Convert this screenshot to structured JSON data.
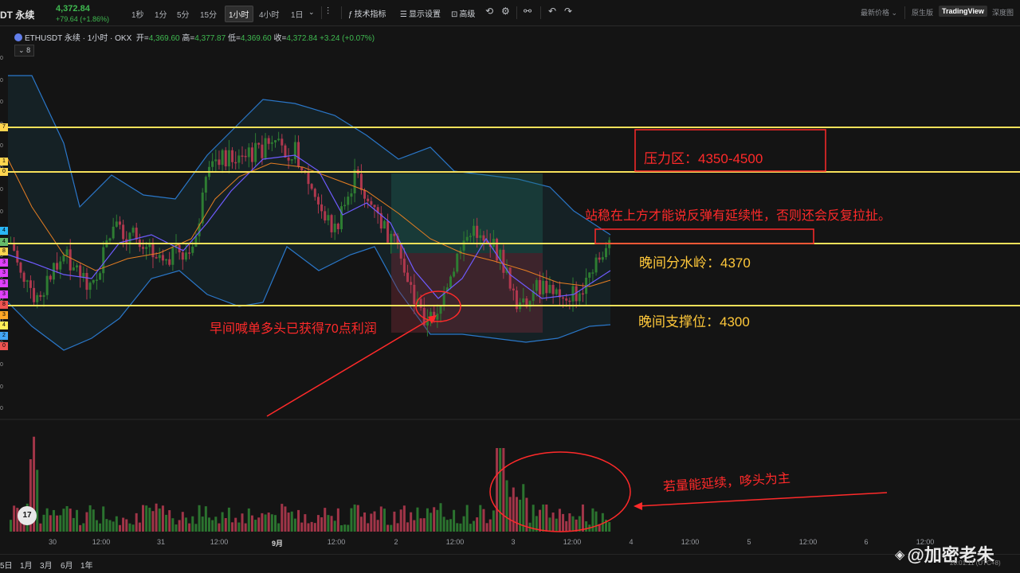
{
  "toolbar": {
    "symbol": "DT 永续",
    "last_price": "4,372.84",
    "change": "+79.64 (+1.86%)",
    "timeframes": [
      "1秒",
      "1分",
      "5分",
      "15分",
      "1小时",
      "4小时",
      "1日"
    ],
    "active_timeframe": "1小时",
    "indicators_label": "技术指标",
    "display_settings_label": "显示设置",
    "advanced_label": "高级",
    "price_type_label": "最新价格",
    "view_tabs": [
      "原生版",
      "TradingView",
      "深度图"
    ],
    "active_view": "TradingView"
  },
  "chart_header": {
    "title": "ETHUSDT 永续 · 1小时 · OKX",
    "open_label": "开=",
    "open": "4,369.60",
    "high_label": "高=",
    "high": "4,377.87",
    "low_label": "低=",
    "low": "4,369.60",
    "close_label": "收=",
    "close": "4,372.84",
    "change": "+3.24 (+0.07%)",
    "indicator_count": "8"
  },
  "left_axis_labels": [
    "0",
    "0",
    "0",
    "0",
    "0",
    "0",
    "0",
    "0",
    "0",
    "0",
    "0",
    "0",
    "0",
    "0",
    "0",
    "0",
    "0"
  ],
  "left_badges": [
    {
      "text": "7",
      "color": "#ffd54f"
    },
    {
      "text": "1",
      "color": "#ffd54f"
    },
    {
      "text": "0",
      "color": "#ffd54f"
    },
    {
      "text": "4",
      "color": "#29b6f6"
    },
    {
      "text": "4",
      "color": "#66bb6a"
    },
    {
      "text": "8",
      "color": "#ffd54f"
    },
    {
      "text": "3",
      "color": "#e040fb"
    },
    {
      "text": "3",
      "color": "#e040fb"
    },
    {
      "text": "3",
      "color": "#e040fb"
    },
    {
      "text": "3",
      "color": "#e040fb"
    },
    {
      "text": "8",
      "color": "#ef5350"
    },
    {
      "text": "3",
      "color": "#ffa726"
    },
    {
      "text": "4",
      "color": "#ffee58"
    },
    {
      "text": "2",
      "color": "#42a5f5"
    },
    {
      "text": "0",
      "color": "#ef5350"
    }
  ],
  "annotations": {
    "pressure_zone": "压力区：4350-4500",
    "stability_note": "站稳在上方才能说反弹有延续性，否则还会反复拉扯。",
    "evening_pivot": "晚间分水岭：4370",
    "evening_support": "晚间支撑位：4300",
    "morning_call": "早间喊单多头已获得70点利润",
    "volume_note": "若量能延续，哆头为主"
  },
  "x_axis_labels": [
    {
      "text": "30",
      "bold": false
    },
    {
      "text": "12:00",
      "bold": false
    },
    {
      "text": "31",
      "bold": false
    },
    {
      "text": "12:00",
      "bold": false
    },
    {
      "text": "9月",
      "bold": true
    },
    {
      "text": "12:00",
      "bold": false
    },
    {
      "text": "2",
      "bold": false
    },
    {
      "text": "12:00",
      "bold": false
    },
    {
      "text": "3",
      "bold": false
    },
    {
      "text": "12:00",
      "bold": false
    },
    {
      "text": "4",
      "bold": false
    },
    {
      "text": "12:00",
      "bold": false
    },
    {
      "text": "5",
      "bold": false
    },
    {
      "text": "12:00",
      "bold": false
    },
    {
      "text": "6",
      "bold": false
    },
    {
      "text": "12:00",
      "bold": false
    }
  ],
  "range_buttons": [
    "5日",
    "1月",
    "3月",
    "6月",
    "1年"
  ],
  "tv_logo": "17",
  "watermark": "@加密老朱",
  "timezone": "20:01:11 (UTC+8)",
  "colors": {
    "up": "#2e7d32",
    "down": "#b0384e",
    "bb_band": "#2a77c9",
    "ma_slow": "#e67e22",
    "ma_fast": "#6f5bff",
    "level_line": "#f7e15a",
    "annotation_red": "#ff2a2a",
    "annotation_yellow": "#ffc83a"
  },
  "chart_data": {
    "type": "candlestick",
    "levels": [
      4500,
      4450,
      4370,
      4300
    ],
    "volume_shape": "per-candle bars, green up / red down"
  }
}
